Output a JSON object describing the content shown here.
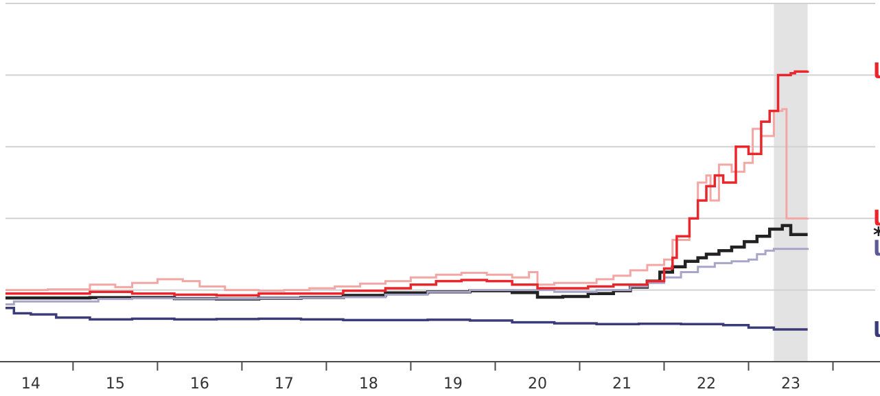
{
  "chart_data": {
    "type": "line",
    "step": true,
    "title": "",
    "xlabel": "",
    "ylabel": "",
    "x_ticks": [
      "14",
      "15",
      "16",
      "17",
      "18",
      "19",
      "20",
      "21",
      "22",
      "23"
    ],
    "xlim": [
      13.7,
      24.0
    ],
    "ylim": [
      0,
      100
    ],
    "shaded_span": [
      22.8,
      23.2
    ],
    "grid": "horizontal",
    "y_gridlines": [
      20,
      40,
      60,
      80,
      100
    ],
    "series": [
      {
        "name": "بريطانيا",
        "color": "#f3a6a3",
        "label_color": "#e8262b",
        "points": [
          [
            13.7,
            20.0
          ],
          [
            14.2,
            20.2
          ],
          [
            14.7,
            21.5
          ],
          [
            15.0,
            20.8
          ],
          [
            15.2,
            22.0
          ],
          [
            15.5,
            23.0
          ],
          [
            15.8,
            22.5
          ],
          [
            16.0,
            21.0
          ],
          [
            16.3,
            20.0
          ],
          [
            16.7,
            19.8
          ],
          [
            17.0,
            20.0
          ],
          [
            17.3,
            20.5
          ],
          [
            17.6,
            21.0
          ],
          [
            17.9,
            21.8
          ],
          [
            18.2,
            22.5
          ],
          [
            18.5,
            23.5
          ],
          [
            18.8,
            24.3
          ],
          [
            19.1,
            24.8
          ],
          [
            19.4,
            24.3
          ],
          [
            19.7,
            23.5
          ],
          [
            19.9,
            25.0
          ],
          [
            20.0,
            21.5
          ],
          [
            20.2,
            22.0
          ],
          [
            20.5,
            22.0
          ],
          [
            20.7,
            23.0
          ],
          [
            20.9,
            24.0
          ],
          [
            21.1,
            25.5
          ],
          [
            21.3,
            27.0
          ],
          [
            21.5,
            28.5
          ],
          [
            21.6,
            34.0
          ],
          [
            21.8,
            40.0
          ],
          [
            21.9,
            50.0
          ],
          [
            22.0,
            52.0
          ],
          [
            22.05,
            45.0
          ],
          [
            22.15,
            55.0
          ],
          [
            22.3,
            53.0
          ],
          [
            22.45,
            55.5
          ],
          [
            22.55,
            65.0
          ],
          [
            22.65,
            63.0
          ],
          [
            22.8,
            70.0
          ],
          [
            22.9,
            70.5
          ],
          [
            22.95,
            40.0
          ],
          [
            23.1,
            40.0
          ],
          [
            23.2,
            40.1
          ]
        ]
      },
      {
        "name": "أوروبا*",
        "color": "#222222",
        "label_color": "#222222",
        "points": [
          [
            13.7,
            17.8
          ],
          [
            14.2,
            17.8
          ],
          [
            14.7,
            17.9
          ],
          [
            15.2,
            17.9
          ],
          [
            15.7,
            17.6
          ],
          [
            16.2,
            17.5
          ],
          [
            16.7,
            17.7
          ],
          [
            17.2,
            17.9
          ],
          [
            17.7,
            18.5
          ],
          [
            18.2,
            19.2
          ],
          [
            18.7,
            19.5
          ],
          [
            19.2,
            19.8
          ],
          [
            19.7,
            19.3
          ],
          [
            20.0,
            18.0
          ],
          [
            20.3,
            18.2
          ],
          [
            20.6,
            19.0
          ],
          [
            20.9,
            19.8
          ],
          [
            21.1,
            20.8
          ],
          [
            21.3,
            22.5
          ],
          [
            21.45,
            25.0
          ],
          [
            21.6,
            26.5
          ],
          [
            21.75,
            28.0
          ],
          [
            21.9,
            29.0
          ],
          [
            22.0,
            30.0
          ],
          [
            22.15,
            31.0
          ],
          [
            22.3,
            32.0
          ],
          [
            22.45,
            33.5
          ],
          [
            22.6,
            35.0
          ],
          [
            22.75,
            37.0
          ],
          [
            22.9,
            38.0
          ],
          [
            23.0,
            35.5
          ],
          [
            23.2,
            35.5
          ]
        ]
      },
      {
        "name": "فرنسا",
        "color": "#a7a6c9",
        "label_color": "#5b5a95",
        "points": [
          [
            13.7,
            16.0
          ],
          [
            13.8,
            16.8
          ],
          [
            14.5,
            16.8
          ],
          [
            14.8,
            17.5
          ],
          [
            15.2,
            17.7
          ],
          [
            15.7,
            17.6
          ],
          [
            16.2,
            17.6
          ],
          [
            16.7,
            17.7
          ],
          [
            17.2,
            17.8
          ],
          [
            17.7,
            18.0
          ],
          [
            18.2,
            18.7
          ],
          [
            18.7,
            19.5
          ],
          [
            19.2,
            20.0
          ],
          [
            19.7,
            20.0
          ],
          [
            20.2,
            19.5
          ],
          [
            20.7,
            20.0
          ],
          [
            21.1,
            21.0
          ],
          [
            21.3,
            22.0
          ],
          [
            21.5,
            23.5
          ],
          [
            21.7,
            25.0
          ],
          [
            21.9,
            26.5
          ],
          [
            22.1,
            27.5
          ],
          [
            22.3,
            28.0
          ],
          [
            22.5,
            28.5
          ],
          [
            22.6,
            30.0
          ],
          [
            22.7,
            31.0
          ],
          [
            22.8,
            31.5
          ],
          [
            23.0,
            31.5
          ],
          [
            23.2,
            31.7
          ]
        ]
      },
      {
        "name": "إيطاليا",
        "color": "#e8262b",
        "label_color": "#e8262b",
        "points": [
          [
            13.7,
            19.0
          ],
          [
            14.2,
            19.0
          ],
          [
            14.7,
            19.5
          ],
          [
            15.2,
            19.0
          ],
          [
            15.7,
            18.7
          ],
          [
            16.2,
            18.5
          ],
          [
            16.7,
            19.0
          ],
          [
            17.2,
            19.0
          ],
          [
            17.7,
            19.8
          ],
          [
            18.2,
            20.5
          ],
          [
            18.5,
            21.5
          ],
          [
            18.8,
            22.5
          ],
          [
            19.1,
            22.8
          ],
          [
            19.4,
            22.5
          ],
          [
            19.7,
            21.5
          ],
          [
            20.0,
            20.5
          ],
          [
            20.3,
            20.5
          ],
          [
            20.6,
            21.0
          ],
          [
            20.9,
            21.5
          ],
          [
            21.1,
            21.5
          ],
          [
            21.3,
            22.5
          ],
          [
            21.5,
            26.0
          ],
          [
            21.6,
            29.0
          ],
          [
            21.65,
            35.0
          ],
          [
            21.8,
            40.0
          ],
          [
            21.9,
            45.0
          ],
          [
            22.0,
            49.0
          ],
          [
            22.1,
            52.0
          ],
          [
            22.2,
            50.0
          ],
          [
            22.35,
            60.0
          ],
          [
            22.5,
            58.0
          ],
          [
            22.65,
            67.0
          ],
          [
            22.75,
            70.0
          ],
          [
            22.85,
            80.0
          ],
          [
            23.0,
            80.5
          ],
          [
            23.05,
            81.0
          ],
          [
            23.2,
            81.2
          ]
        ]
      },
      {
        "name": "هنغاريا",
        "color": "#3b3b7a",
        "label_color": "#3b3b7a",
        "points": [
          [
            13.7,
            15.0
          ],
          [
            13.8,
            13.5
          ],
          [
            14.0,
            13.2
          ],
          [
            14.3,
            12.3
          ],
          [
            14.7,
            11.8
          ],
          [
            15.2,
            12.0
          ],
          [
            15.7,
            11.8
          ],
          [
            16.2,
            11.9
          ],
          [
            16.7,
            12.0
          ],
          [
            17.2,
            11.8
          ],
          [
            17.7,
            11.6
          ],
          [
            18.2,
            11.6
          ],
          [
            18.7,
            11.7
          ],
          [
            19.2,
            11.5
          ],
          [
            19.7,
            11.0
          ],
          [
            20.2,
            10.7
          ],
          [
            20.7,
            10.5
          ],
          [
            21.2,
            10.6
          ],
          [
            21.7,
            10.5
          ],
          [
            22.2,
            10.2
          ],
          [
            22.5,
            9.5
          ],
          [
            22.8,
            9.0
          ],
          [
            23.2,
            9.0
          ]
        ]
      }
    ]
  }
}
